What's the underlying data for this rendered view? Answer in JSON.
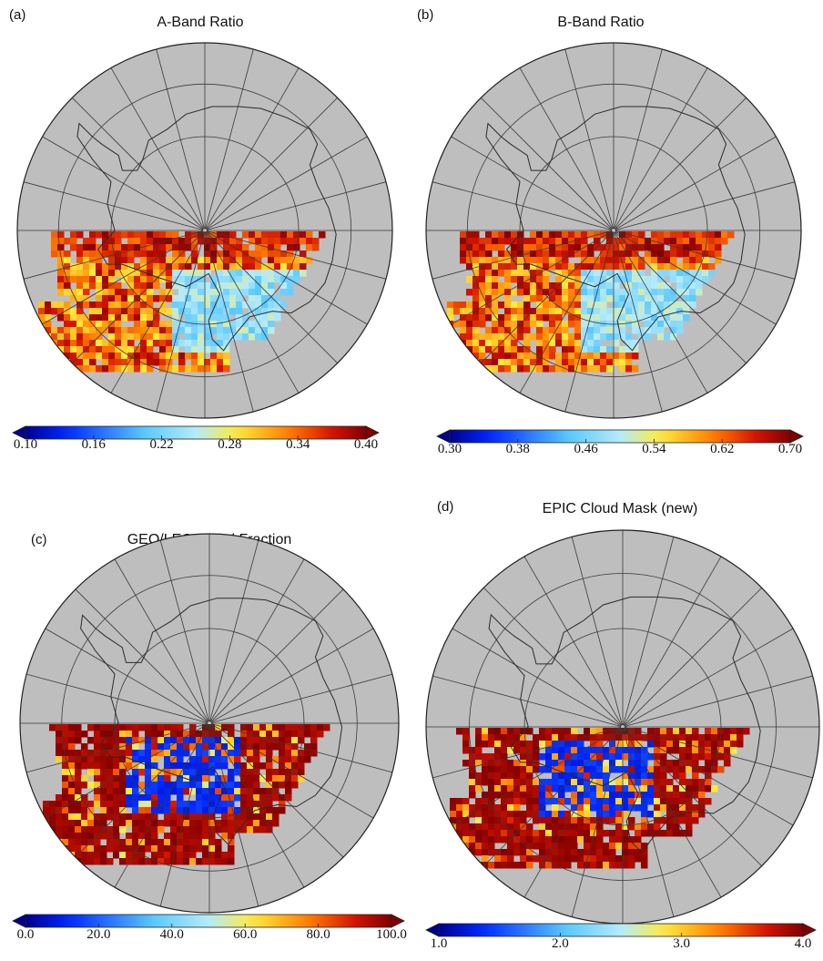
{
  "panels": [
    {
      "id": "a",
      "label": "(a)",
      "title": "A-Band Ratio",
      "colorbar": {
        "min": 0.1,
        "max": 0.4,
        "ticks": [
          "0.10",
          "0.16",
          "0.22",
          "0.28",
          "0.34",
          "0.40"
        ]
      },
      "data_pattern": "ratio"
    },
    {
      "id": "b",
      "label": "(b)",
      "title": "B-Band Ratio",
      "colorbar": {
        "min": 0.3,
        "max": 0.7,
        "ticks": [
          "0.30",
          "0.38",
          "0.46",
          "0.54",
          "0.62",
          "0.70"
        ]
      },
      "data_pattern": "ratio"
    },
    {
      "id": "c",
      "label": "(c)",
      "title": "GEO/LEO Cloud Fraction",
      "colorbar": {
        "min": 0.0,
        "max": 100.0,
        "ticks": [
          "0.0",
          "20.0",
          "40.0",
          "60.0",
          "80.0",
          "100.0"
        ]
      },
      "data_pattern": "mask"
    },
    {
      "id": "d",
      "label": "(d)",
      "title": "EPIC  Cloud Mask (new)",
      "colorbar": {
        "min": 1.0,
        "max": 4.0,
        "ticks": [
          "1.0",
          "2.0",
          "3.0",
          "4.0"
        ]
      },
      "data_pattern": "mask"
    }
  ],
  "map_style": {
    "background": "#bebebe",
    "grid_color": "#3a3a3a",
    "coast_color": "#2a2a2a",
    "projection": "south polar stereographic",
    "colormap": "blue-cyan-yellow-red-darkred"
  }
}
